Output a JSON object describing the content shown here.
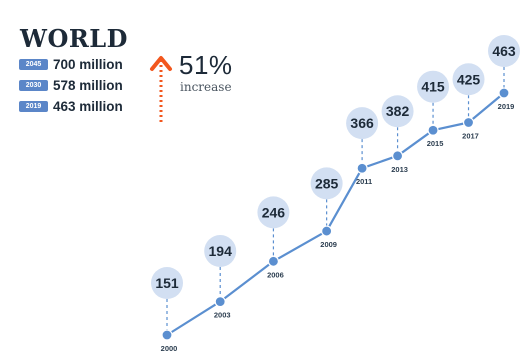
{
  "region": {
    "title": "WORLD"
  },
  "projections": [
    {
      "year": "2045",
      "value": "700 million"
    },
    {
      "year": "2030",
      "value": "578 million"
    },
    {
      "year": "2019",
      "value": "463 million"
    }
  ],
  "increase": {
    "percent": "51%",
    "label": "increase"
  },
  "colors": {
    "line": "#5b8fd0",
    "bubble": "#d2dff2",
    "bubble_text": "#1d2a38",
    "arrow": "#f2571e",
    "badge": "#5b86c8"
  },
  "chart_data": {
    "type": "line",
    "title": "",
    "xlabel": "",
    "ylabel": "",
    "x": [
      "2000",
      "2003",
      "2006",
      "2009",
      "2011",
      "2013",
      "2015",
      "2017",
      "2019"
    ],
    "values": [
      151,
      194,
      246,
      285,
      366,
      382,
      415,
      425,
      463
    ],
    "data_labels": [
      "151",
      "194",
      "246",
      "285",
      "366",
      "382",
      "415",
      "425",
      "463"
    ],
    "ylim": [
      151,
      463
    ],
    "grid": false,
    "legend": "none"
  }
}
